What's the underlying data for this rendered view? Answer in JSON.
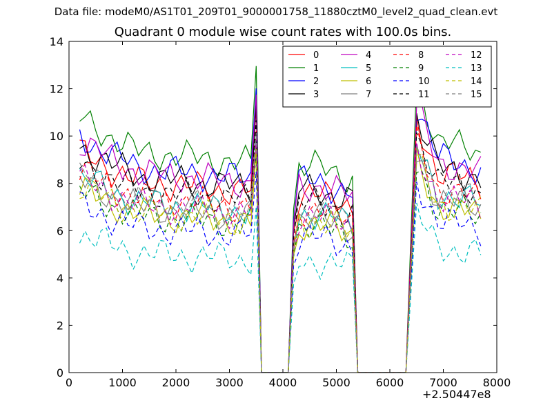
{
  "figure_title": "Data file: modeM0/AS1T01_209T01_9000001758_11880cztM0_level2_quad_clean.evt",
  "chart_data": {
    "type": "line",
    "title": "Quadrant 0 module wise count rates with 100.0s bins.",
    "xlabel": "",
    "ylabel": "",
    "x_offset_label": "+2.50447e8",
    "xlim": [
      0,
      8000
    ],
    "ylim": [
      0,
      14
    ],
    "x_ticks": [
      0,
      1000,
      2000,
      3000,
      4000,
      5000,
      6000,
      7000,
      8000
    ],
    "y_ticks": [
      0,
      2,
      4,
      6,
      8,
      10,
      12,
      14
    ],
    "legend_position": "top-right",
    "legend_columns": 4,
    "segments": [
      {
        "x_start": 200,
        "x_end": 3400,
        "step": 100
      },
      {
        "x_start": 4300,
        "x_end": 5300,
        "step": 100
      },
      {
        "x_start": 6500,
        "x_end": 7700,
        "step": 100
      }
    ],
    "gap_points": [
      {
        "x": 3500,
        "scale": 0.15
      },
      {
        "x": 3600,
        "scale": 0.0
      },
      {
        "x": 4100,
        "scale": 0.0
      },
      {
        "x": 4200,
        "scale": 0.08
      },
      {
        "x": 5400,
        "scale": 0.0
      },
      {
        "x": 6300,
        "scale": 0.0
      }
    ],
    "series": [
      {
        "name": "0",
        "color": "#ff0000",
        "dash": "solid",
        "level": 8.3,
        "phase": 0.3
      },
      {
        "name": "1",
        "color": "#008000",
        "dash": "solid",
        "level": 9.6,
        "phase": 1.1
      },
      {
        "name": "2",
        "color": "#0000ff",
        "dash": "solid",
        "level": 8.9,
        "phase": 2.2
      },
      {
        "name": "3",
        "color": "#000000",
        "dash": "solid",
        "level": 8.5,
        "phase": 3.0
      },
      {
        "name": "4",
        "color": "#bf00bf",
        "dash": "solid",
        "level": 8.7,
        "phase": 0.8
      },
      {
        "name": "5",
        "color": "#00bfbf",
        "dash": "solid",
        "level": 7.4,
        "phase": 1.7
      },
      {
        "name": "6",
        "color": "#bfbf00",
        "dash": "solid",
        "level": 6.9,
        "phase": 2.6
      },
      {
        "name": "7",
        "color": "#808080",
        "dash": "solid",
        "level": 7.2,
        "phase": 3.5
      },
      {
        "name": "8",
        "color": "#ff0000",
        "dash": "dashed",
        "level": 7.6,
        "phase": 0.5
      },
      {
        "name": "9",
        "color": "#008000",
        "dash": "dashed",
        "level": 6.8,
        "phase": 1.4
      },
      {
        "name": "10",
        "color": "#0000ff",
        "dash": "dashed",
        "level": 6.3,
        "phase": 2.3
      },
      {
        "name": "11",
        "color": "#000000",
        "dash": "dashed",
        "level": 7.9,
        "phase": 3.2
      },
      {
        "name": "12",
        "color": "#bf00bf",
        "dash": "dashed",
        "level": 7.3,
        "phase": 0.1
      },
      {
        "name": "13",
        "color": "#00bfbf",
        "dash": "dashed",
        "level": 5.2,
        "phase": 1.9
      },
      {
        "name": "14",
        "color": "#bfbf00",
        "dash": "dashed",
        "level": 7.0,
        "phase": 2.8
      },
      {
        "name": "15",
        "color": "#808080",
        "dash": "dashed",
        "level": 7.5,
        "phase": 3.7
      }
    ],
    "segment_gain": [
      1.0,
      0.93,
      1.05
    ],
    "segment_start_boost": [
      1.12,
      0.98,
      1.22
    ]
  }
}
